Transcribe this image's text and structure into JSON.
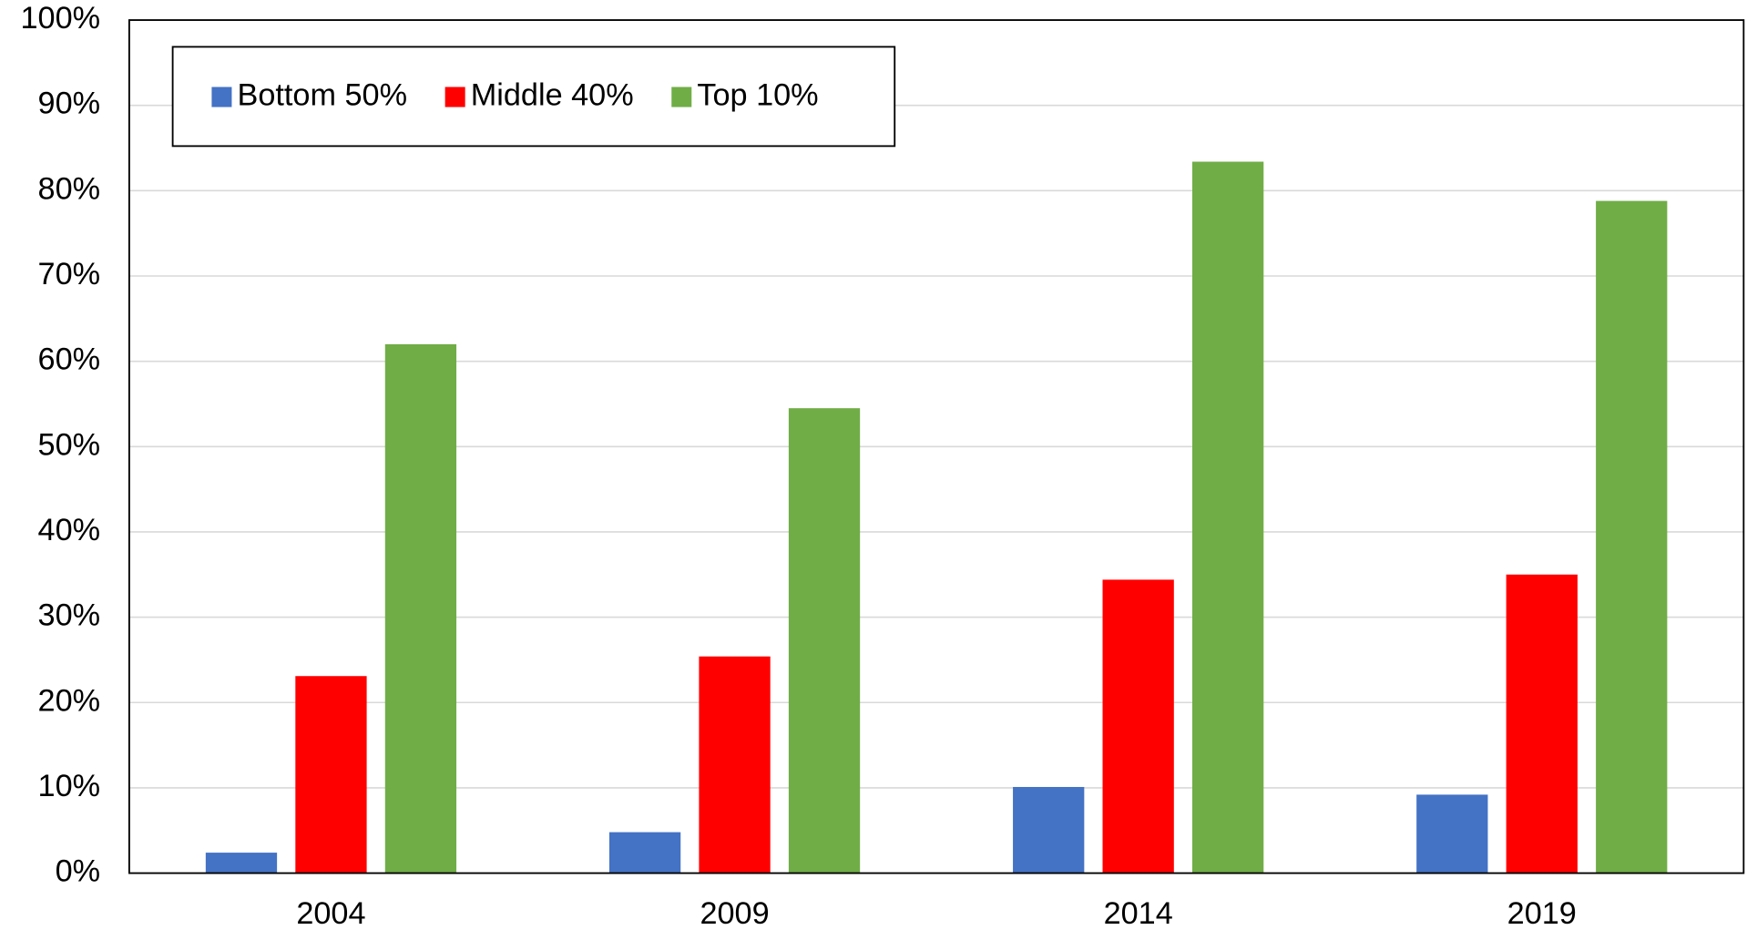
{
  "chart_data": {
    "type": "bar",
    "categories": [
      "2004",
      "2009",
      "2014",
      "2019"
    ],
    "series": [
      {
        "name": "Bottom 50%",
        "color": "#4472c4",
        "values": [
          2.4,
          4.8,
          10.1,
          9.2
        ]
      },
      {
        "name": "Middle 40%",
        "color": "#ff0000",
        "values": [
          23.1,
          25.4,
          34.4,
          35.0
        ]
      },
      {
        "name": "Top 10%",
        "color": "#70ad47",
        "values": [
          62,
          54.5,
          83.4,
          78.8
        ]
      }
    ],
    "ylim": [
      0,
      100
    ],
    "yticks": [
      {
        "value": 0,
        "label": "0%"
      },
      {
        "value": 10,
        "label": "10%"
      },
      {
        "value": 20,
        "label": "20%"
      },
      {
        "value": 30,
        "label": "30%"
      },
      {
        "value": 40,
        "label": "40%"
      },
      {
        "value": 50,
        "label": "50%"
      },
      {
        "value": 60,
        "label": "60%"
      },
      {
        "value": 70,
        "label": "70%"
      },
      {
        "value": 80,
        "label": "80%"
      },
      {
        "value": 90,
        "label": "90%"
      },
      {
        "value": 100,
        "label": "100%"
      }
    ],
    "grid": true,
    "legend": "top-left"
  }
}
